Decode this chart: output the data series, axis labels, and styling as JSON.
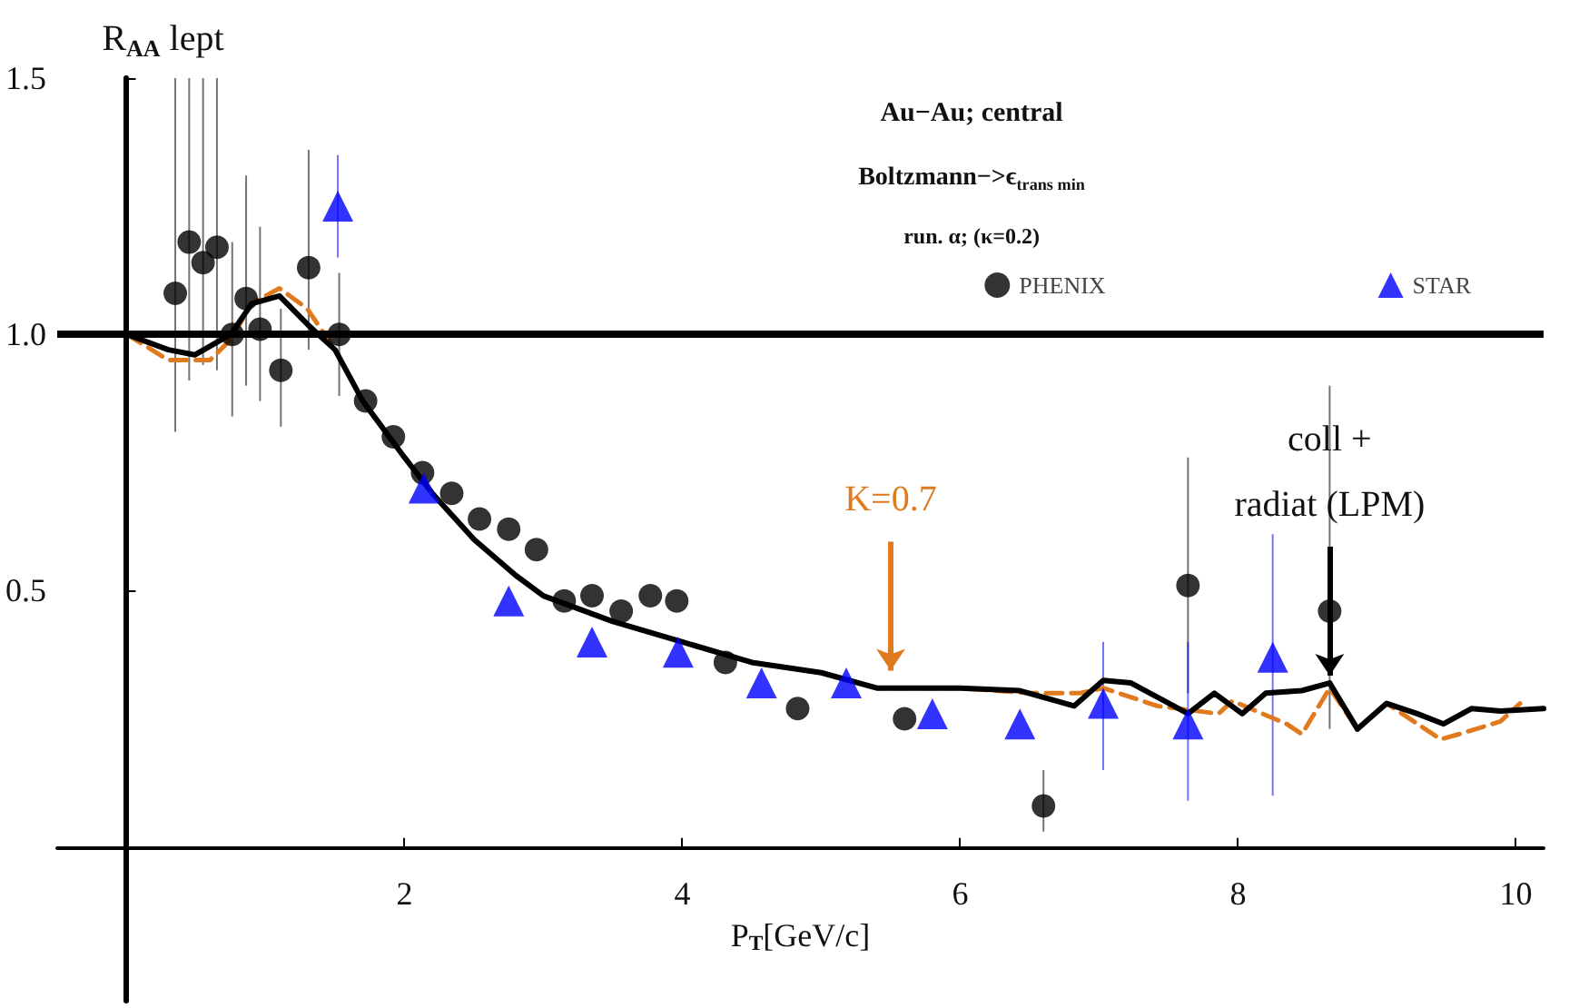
{
  "chart_data": {
    "type": "scatter",
    "title": "Au−Au; central",
    "subtitle": "Boltzmann−>ϵ$_{trans min}$",
    "xlabel": "P$_{T}$[GeV/c]",
    "ylabel": "R$_{AA}$ lept",
    "annotations": [
      "run. α; (κ=0.2)",
      {
        "text": "K=0.7",
        "x": 5.5,
        "y": 0.33
      },
      {
        "text": "coll +\nradiat (LPM)",
        "x": 8.66,
        "y": 0.32
      }
    ],
    "xlim": [
      -0.5,
      10.2
    ],
    "xticks": [
      2,
      4,
      6,
      8,
      10
    ],
    "ylim": [
      -0.3,
      1.5
    ],
    "yticks": [
      0.5,
      {
        "value": 1,
        "label": "1.0"
      },
      1.5
    ],
    "legend": "top right",
    "ref_lines": [
      {
        "axis": "y",
        "value": 1,
        "color": "#000000"
      }
    ],
    "series": [
      {
        "name": "PHENIX",
        "marker": "circle",
        "color": "#000000",
        "x": [
          0.35,
          0.45,
          0.55,
          0.65,
          0.76,
          0.86,
          0.96,
          1.11,
          1.31,
          1.53,
          1.72,
          1.92,
          2.13,
          2.34,
          2.54,
          2.75,
          2.95,
          3.15,
          3.35,
          3.56,
          3.77,
          3.96,
          4.31,
          4.83,
          5.6,
          6.6,
          7.64,
          8.66
        ],
        "values": [
          1.08,
          1.18,
          1.14,
          1.17,
          1.0,
          1.07,
          1.01,
          0.93,
          1.13,
          1.0,
          0.87,
          0.8,
          0.73,
          0.69,
          0.64,
          0.62,
          0.58,
          0.48,
          0.49,
          0.46,
          0.49,
          0.48,
          0.36,
          0.27,
          0.25,
          0.08,
          0.51,
          0.46
        ],
        "errors": [
          [
            0.81,
            1.5
          ],
          [
            0.91,
            1.5
          ],
          [
            0.94,
            1.5
          ],
          [
            0.93,
            1.5
          ],
          [
            0.84,
            1.18
          ],
          [
            0.9,
            1.31
          ],
          [
            0.87,
            1.21
          ],
          [
            0.82,
            1.05
          ],
          [
            0.97,
            1.36
          ],
          [
            0.88,
            1.12
          ],
          null,
          null,
          null,
          null,
          null,
          null,
          null,
          null,
          null,
          null,
          null,
          null,
          null,
          null,
          null,
          [
            0.03,
            0.15
          ],
          [
            0.3,
            0.76
          ],
          [
            0.23,
            0.9
          ]
        ]
      },
      {
        "name": "STAR",
        "marker": "triangle",
        "color": "#0000ff",
        "x": [
          1.52,
          2.14,
          2.75,
          3.35,
          3.97,
          4.57,
          5.18,
          5.8,
          6.43,
          7.03,
          7.64,
          8.25
        ],
        "values": [
          1.25,
          0.7,
          0.48,
          0.4,
          0.38,
          0.32,
          0.32,
          0.26,
          0.24,
          0.28,
          0.24,
          0.37
        ],
        "errors": [
          [
            1.15,
            1.35
          ],
          null,
          null,
          null,
          null,
          null,
          null,
          null,
          null,
          [
            0.15,
            0.4
          ],
          [
            0.09,
            0.4
          ],
          [
            0.1,
            0.61
          ]
        ]
      },
      {
        "type": "line",
        "marker": "none",
        "line_style": "dashed",
        "color": "#e07a1f",
        "x": [
          0,
          0.3,
          0.6,
          0.75,
          0.9,
          1.1,
          1.3,
          1.5,
          1.7,
          2.0,
          2.2,
          2.5,
          2.8,
          3.0,
          3.5,
          4.0,
          4.5,
          5.0,
          5.4,
          6.0,
          6.5,
          6.86,
          7.03,
          7.42,
          7.86,
          7.96,
          8.35,
          8.46,
          8.66,
          8.86,
          9.07,
          9.46,
          9.59,
          9.89,
          10.03
        ],
        "values": [
          1.0,
          0.95,
          0.95,
          0.99,
          1.06,
          1.09,
          1.05,
          0.97,
          0.87,
          0.76,
          0.69,
          0.6,
          0.53,
          0.49,
          0.44,
          0.4,
          0.36,
          0.34,
          0.31,
          0.31,
          0.3,
          0.3,
          0.31,
          0.275,
          0.26,
          0.285,
          0.24,
          0.22,
          0.31,
          0.23,
          0.28,
          0.21,
          0.22,
          0.245,
          0.28
        ]
      },
      {
        "type": "line",
        "marker": "none",
        "line_style": "solid",
        "color": "#000000",
        "x": [
          0,
          0.3,
          0.49,
          0.75,
          0.9,
          1.1,
          1.3,
          1.5,
          1.7,
          2.0,
          2.2,
          2.5,
          2.8,
          3.0,
          3.5,
          4.0,
          4.5,
          5.0,
          5.4,
          6.0,
          6.43,
          6.82,
          7.03,
          7.23,
          7.64,
          7.83,
          8.03,
          8.2,
          8.46,
          8.66,
          8.86,
          9.07,
          9.29,
          9.48,
          9.68,
          9.89,
          10.2
        ],
        "values": [
          1.0,
          0.97,
          0.96,
          1.0,
          1.06,
          1.075,
          1.02,
          0.97,
          0.87,
          0.76,
          0.69,
          0.6,
          0.53,
          0.49,
          0.44,
          0.4,
          0.36,
          0.34,
          0.31,
          0.31,
          0.305,
          0.275,
          0.325,
          0.32,
          0.26,
          0.3,
          0.26,
          0.3,
          0.305,
          0.32,
          0.23,
          0.28,
          0.26,
          0.24,
          0.27,
          0.265,
          0.27
        ]
      }
    ]
  }
}
